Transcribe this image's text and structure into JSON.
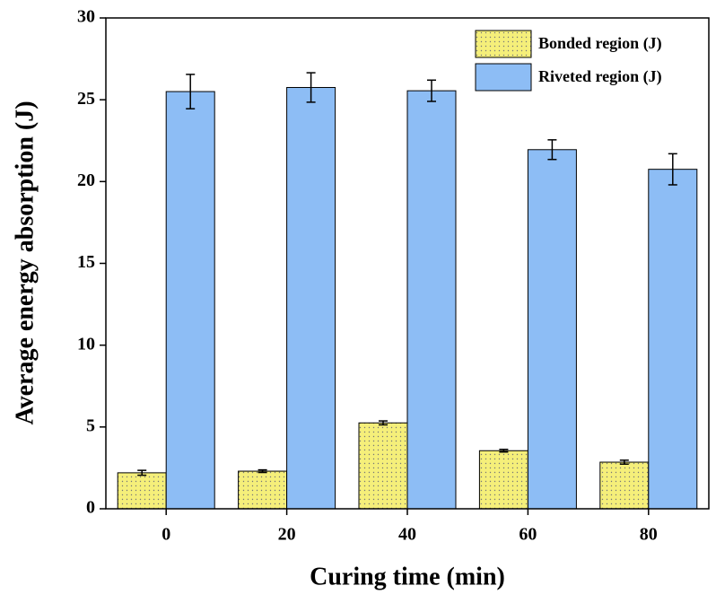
{
  "chart_data": {
    "type": "bar",
    "xlabel": "Curing time (min)",
    "ylabel": "Average energy absorption (J)",
    "categories": [
      "0",
      "20",
      "40",
      "60",
      "80"
    ],
    "series": [
      {
        "name": "Bonded region (J)",
        "color": "#f5ef7a",
        "pattern": "dots",
        "values": [
          2.2,
          2.3,
          5.25,
          3.55,
          2.85
        ],
        "errors": [
          0.15,
          0.08,
          0.12,
          0.08,
          0.12
        ]
      },
      {
        "name": "Riveted region (J)",
        "color": "#8dbdf5",
        "values": [
          25.5,
          25.75,
          25.55,
          21.95,
          20.75
        ],
        "errors": [
          1.05,
          0.9,
          0.65,
          0.6,
          0.95
        ]
      }
    ],
    "ylim": [
      0,
      30
    ],
    "yticks": [
      0,
      5,
      10,
      15,
      20,
      25,
      30
    ],
    "grid": false,
    "legend": "upper right"
  }
}
